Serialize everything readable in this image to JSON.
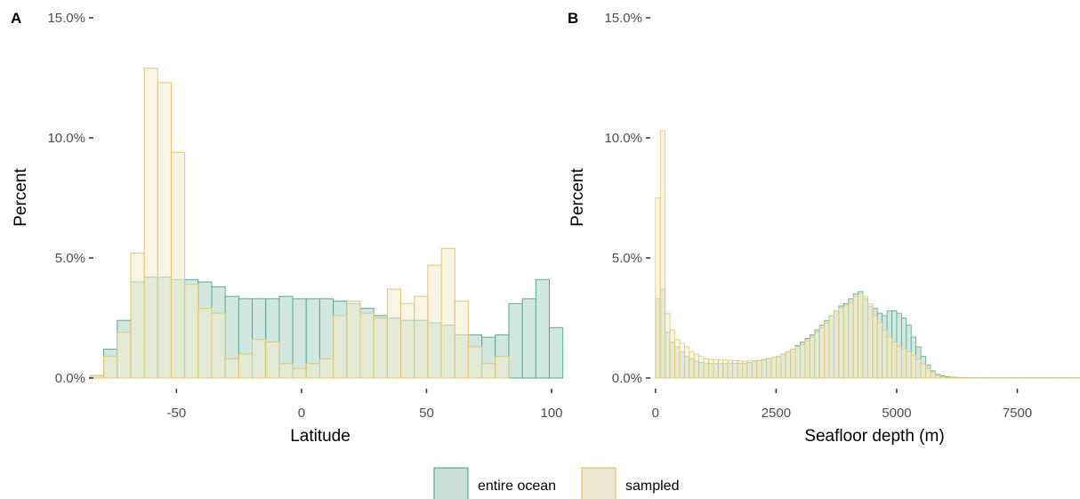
{
  "legend": {
    "items": [
      {
        "label": "entire ocean",
        "fill": "#c9e0d9",
        "stroke": "#5aaa8e"
      },
      {
        "label": "sampled",
        "fill": "#ece5cf",
        "stroke": "#e1c56b"
      }
    ]
  },
  "styles": {
    "ocean_fill": "#c9e4db",
    "ocean_stroke": "#5aaa8e",
    "sampled_fill": "#f3ecd0",
    "sampled_stroke": "#e3c76d"
  },
  "chart_data": [
    {
      "type": "bar",
      "panel_label": "A",
      "xlabel": "Latitude",
      "ylabel": "Percent",
      "xlim": [
        -85,
        100
      ],
      "ylim": [
        0,
        15
      ],
      "x_ticks": [
        -50,
        0,
        50,
        100
      ],
      "y_ticks": [
        0,
        5,
        10,
        15
      ],
      "y_tick_labels": [
        "0.0%",
        "5.0%",
        "10.0%",
        "15.0%"
      ],
      "bin_width": 5.4,
      "bin_start": -84.5,
      "series": [
        {
          "name": "entire ocean",
          "values": [
            0.1,
            1.2,
            2.4,
            4.0,
            4.2,
            4.2,
            4.1,
            4.1,
            4.0,
            3.8,
            3.4,
            3.3,
            3.3,
            3.3,
            3.4,
            3.3,
            3.3,
            3.3,
            3.2,
            3.1,
            2.9,
            2.6,
            2.5,
            2.4,
            2.4,
            2.3,
            2.2,
            1.8,
            1.8,
            1.7,
            1.8,
            3.1,
            3.3,
            4.1,
            2.1
          ]
        },
        {
          "name": "sampled",
          "values": [
            0.1,
            0.9,
            1.9,
            5.2,
            12.9,
            12.3,
            9.4,
            3.9,
            2.9,
            2.7,
            0.8,
            1.0,
            1.6,
            1.5,
            0.6,
            0.4,
            0.6,
            0.8,
            2.6,
            3.2,
            2.7,
            2.5,
            3.7,
            3.1,
            3.4,
            4.7,
            5.4,
            3.2,
            1.3,
            0.6,
            0.9
          ]
        }
      ]
    },
    {
      "type": "bar",
      "panel_label": "B",
      "xlabel": "Seafloor depth (m)",
      "ylabel": "Percent",
      "xlim": [
        -200,
        8800
      ],
      "ylim": [
        0,
        15
      ],
      "x_ticks": [
        0,
        2500,
        5000,
        7500
      ],
      "y_ticks": [
        0,
        5,
        10,
        15
      ],
      "y_tick_labels": [
        "0.0%",
        "5.0%",
        "10.0%",
        "15.0%"
      ],
      "bin_width": 100,
      "bin_start": 0,
      "series": [
        {
          "name": "entire ocean",
          "values": [
            3.3,
            3.7,
            1.9,
            1.5,
            1.3,
            1.1,
            0.9,
            0.8,
            0.7,
            0.65,
            0.62,
            0.6,
            0.6,
            0.6,
            0.6,
            0.62,
            0.62,
            0.62,
            0.62,
            0.65,
            0.68,
            0.72,
            0.76,
            0.8,
            0.85,
            0.9,
            1.0,
            1.1,
            1.2,
            1.35,
            1.5,
            1.65,
            1.8,
            2.0,
            2.2,
            2.4,
            2.6,
            2.8,
            3.0,
            3.1,
            3.3,
            3.5,
            3.6,
            3.3,
            3.0,
            2.9,
            2.7,
            2.6,
            2.8,
            2.8,
            2.7,
            2.5,
            2.2,
            1.7,
            1.3,
            0.9,
            0.55,
            0.3,
            0.15,
            0.1,
            0.06,
            0.04,
            0.03,
            0.02,
            0.02,
            0.01,
            0.01,
            0.01,
            0.01,
            0.01,
            0.01,
            0.01,
            0.01,
            0.01,
            0.01,
            0.01,
            0.01,
            0.01,
            0.01,
            0.01,
            0.01,
            0.01,
            0.01,
            0.01,
            0.01,
            0.01,
            0.01,
            0.01
          ]
        },
        {
          "name": "sampled",
          "values": [
            7.5,
            10.3,
            2.7,
            2.0,
            1.6,
            1.45,
            1.3,
            1.1,
            1.0,
            0.9,
            0.8,
            0.78,
            0.76,
            0.76,
            0.75,
            0.74,
            0.72,
            0.72,
            0.7,
            0.72,
            0.72,
            0.74,
            0.78,
            0.82,
            0.86,
            0.9,
            1.0,
            1.1,
            1.2,
            1.3,
            1.4,
            1.55,
            1.7,
            1.9,
            2.1,
            2.3,
            2.6,
            2.8,
            2.9,
            3.0,
            3.1,
            3.4,
            3.5,
            3.4,
            3.1,
            2.6,
            2.3,
            2.0,
            1.7,
            1.5,
            1.3,
            1.2,
            1.1,
            0.95,
            0.8,
            0.6,
            0.4,
            0.25,
            0.12,
            0.06,
            0.04,
            0.03,
            0.02,
            0.02,
            0.02,
            0.01,
            0.01,
            0.01,
            0.01,
            0.01,
            0.01,
            0.01,
            0.01,
            0.01,
            0.01,
            0.01,
            0.01,
            0.01,
            0.01,
            0.01,
            0.01,
            0.01,
            0.01,
            0.01,
            0.01,
            0.01,
            0.01,
            0.01
          ]
        }
      ]
    }
  ]
}
